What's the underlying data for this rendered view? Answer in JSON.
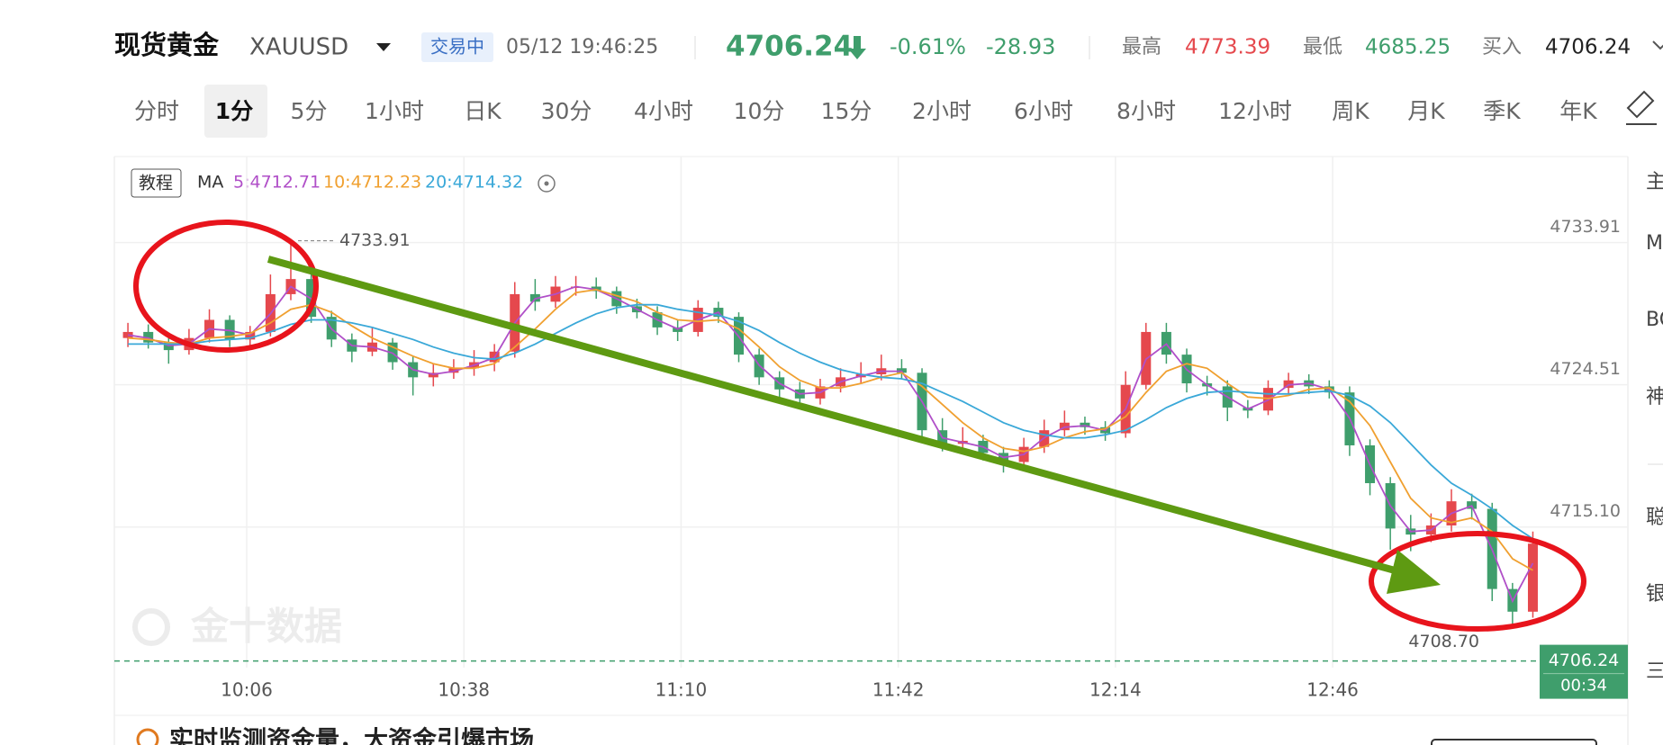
{
  "header": {
    "name": "现货黄金",
    "symbol": "XAUUSD",
    "status": "交易中",
    "datetime": "05/12 19:46:25",
    "price": "4706.24",
    "change_pct": "-0.61%",
    "change": "-28.93",
    "high_label": "最高",
    "high": "4773.39",
    "low_label": "最低",
    "low": "4685.25",
    "bid_label": "买入",
    "bid": "4706.24"
  },
  "tabs": [
    "分时",
    "1分",
    "5分",
    "1小时",
    "日K",
    "30分",
    "4小时",
    "10分",
    "15分",
    "2小时",
    "6小时",
    "8小时",
    "12小时",
    "周K",
    "月K",
    "季K",
    "年K"
  ],
  "tutorial": "教程",
  "watermark": "金十数据",
  "banner": "实时监测资金量，大资金引爆市场",
  "sidebar": [
    "主",
    "M",
    "BO",
    "神",
    "聪",
    "银",
    "三"
  ],
  "chart_data": {
    "type": "candlestick",
    "indicator": "MA",
    "up_color": "#e5484d",
    "down_color": "#3f9e6c",
    "x": [
      2,
      5,
      8,
      11,
      14,
      17,
      20,
      23,
      26,
      29,
      32,
      35,
      38,
      41,
      44,
      47,
      50,
      53,
      56,
      59,
      62,
      65,
      68,
      71,
      74,
      77,
      80,
      83,
      86,
      89,
      92,
      95,
      98,
      101,
      104,
      107,
      110,
      113,
      116,
      119,
      122,
      125,
      128,
      131,
      134,
      137,
      140,
      143,
      146,
      149,
      152,
      155,
      158,
      161,
      164,
      167,
      170,
      173,
      176,
      179,
      182,
      185,
      188,
      191,
      194,
      197,
      200,
      203,
      206,
      209
    ],
    "candles": [
      [
        4727.6,
        4728.6,
        4727.0,
        4728.0
      ],
      [
        4728.0,
        4728.5,
        4726.9,
        4727.3
      ],
      [
        4727.3,
        4727.8,
        4725.9,
        4726.8
      ],
      [
        4726.8,
        4728.2,
        4726.5,
        4727.6
      ],
      [
        4727.6,
        4729.5,
        4727.3,
        4728.8
      ],
      [
        4728.8,
        4729.1,
        4727.0,
        4727.5
      ],
      [
        4727.5,
        4728.4,
        4726.9,
        4728.0
      ],
      [
        4728.0,
        4731.8,
        4727.7,
        4730.5
      ],
      [
        4730.5,
        4733.91,
        4730.1,
        4731.5
      ],
      [
        4731.5,
        4731.9,
        4728.6,
        4729.0
      ],
      [
        4729.0,
        4729.4,
        4727.0,
        4727.5
      ],
      [
        4727.5,
        4727.9,
        4726.0,
        4726.7
      ],
      [
        4726.7,
        4728.3,
        4726.4,
        4727.3
      ],
      [
        4727.3,
        4727.6,
        4725.5,
        4726.0
      ],
      [
        4726.0,
        4726.4,
        4723.8,
        4725.0
      ],
      [
        4725.0,
        4725.9,
        4724.4,
        4725.3
      ],
      [
        4725.3,
        4726.2,
        4724.9,
        4725.6
      ],
      [
        4725.6,
        4726.8,
        4725.1,
        4726.0
      ],
      [
        4726.0,
        4727.2,
        4725.4,
        4726.7
      ],
      [
        4726.7,
        4731.3,
        4726.3,
        4730.5
      ],
      [
        4730.5,
        4731.5,
        4729.4,
        4730.0
      ],
      [
        4730.0,
        4731.7,
        4729.6,
        4731.0
      ],
      [
        4731.0,
        4731.7,
        4730.4,
        4731.0
      ],
      [
        4731.0,
        4731.6,
        4730.2,
        4730.7
      ],
      [
        4730.7,
        4731.0,
        4729.2,
        4729.7
      ],
      [
        4729.7,
        4730.2,
        4728.9,
        4729.3
      ],
      [
        4729.3,
        4729.7,
        4727.8,
        4728.3
      ],
      [
        4728.3,
        4728.8,
        4727.4,
        4728.0
      ],
      [
        4728.0,
        4730.1,
        4727.7,
        4729.6
      ],
      [
        4729.6,
        4730.0,
        4728.6,
        4729.0
      ],
      [
        4729.0,
        4729.3,
        4726.0,
        4726.5
      ],
      [
        4726.5,
        4726.9,
        4724.5,
        4725.0
      ],
      [
        4725.0,
        4725.4,
        4723.6,
        4724.2
      ],
      [
        4724.2,
        4724.7,
        4722.9,
        4723.6
      ],
      [
        4723.6,
        4724.9,
        4723.2,
        4724.4
      ],
      [
        4724.4,
        4725.6,
        4724.0,
        4725.0
      ],
      [
        4725.0,
        4726.0,
        4724.6,
        4725.2
      ],
      [
        4725.2,
        4726.5,
        4724.8,
        4725.6
      ],
      [
        4725.6,
        4726.2,
        4724.9,
        4725.3
      ],
      [
        4725.3,
        4725.6,
        4720.8,
        4721.5
      ],
      [
        4721.5,
        4722.3,
        4720.1,
        4720.6
      ],
      [
        4720.6,
        4721.7,
        4720.2,
        4720.8
      ],
      [
        4720.8,
        4721.2,
        4719.5,
        4720.0
      ],
      [
        4720.0,
        4720.4,
        4718.7,
        4719.4
      ],
      [
        4719.4,
        4721.0,
        4719.0,
        4720.4
      ],
      [
        4720.4,
        4722.2,
        4720.0,
        4721.5
      ],
      [
        4721.5,
        4722.8,
        4721.1,
        4722.0
      ],
      [
        4722.0,
        4722.4,
        4721.2,
        4721.7
      ],
      [
        4721.7,
        4722.1,
        4720.8,
        4721.3
      ],
      [
        4721.3,
        4725.4,
        4721.0,
        4724.5
      ],
      [
        4724.5,
        4728.6,
        4724.2,
        4728.0
      ],
      [
        4728.0,
        4728.6,
        4725.9,
        4726.5
      ],
      [
        4726.5,
        4726.9,
        4724.0,
        4724.6
      ],
      [
        4724.6,
        4725.1,
        4723.8,
        4724.4
      ],
      [
        4724.4,
        4724.8,
        4722.1,
        4723.0
      ],
      [
        4723.0,
        4723.5,
        4722.3,
        4722.8
      ],
      [
        4722.8,
        4724.8,
        4722.5,
        4724.3
      ],
      [
        4724.3,
        4725.3,
        4723.9,
        4724.8
      ],
      [
        4724.8,
        4725.2,
        4723.9,
        4724.4
      ],
      [
        4724.4,
        4724.8,
        4723.6,
        4724.0
      ],
      [
        4724.0,
        4724.4,
        4719.8,
        4720.5
      ],
      [
        4720.5,
        4720.9,
        4717.2,
        4718.0
      ],
      [
        4718.0,
        4718.4,
        4713.6,
        4715.0
      ],
      [
        4715.0,
        4715.9,
        4713.5,
        4714.6
      ],
      [
        4714.6,
        4716.0,
        4714.1,
        4715.2
      ],
      [
        4715.2,
        4717.6,
        4714.8,
        4716.8
      ],
      [
        4716.8,
        4717.3,
        4715.6,
        4716.3
      ],
      [
        4716.3,
        4716.7,
        4710.2,
        4711.0
      ],
      [
        4711.0,
        4711.4,
        4708.7,
        4709.5
      ],
      [
        4709.5,
        4714.8,
        4709.1,
        4714.0
      ]
    ],
    "series": [
      {
        "name": "5:4712.71",
        "color": "#b04fc8",
        "values": [
          4727.8,
          4727.6,
          4727.1,
          4727.2,
          4728.2,
          4728.1,
          4727.8,
          4729.2,
          4731.0,
          4730.2,
          4728.2,
          4727.1,
          4727.0,
          4726.6,
          4725.5,
          4725.2,
          4725.4,
          4725.8,
          4726.3,
          4728.6,
          4730.2,
          4730.5,
          4731.0,
          4730.8,
          4730.2,
          4729.5,
          4728.8,
          4728.2,
          4728.8,
          4729.3,
          4727.7,
          4725.8,
          4724.6,
          4723.9,
          4724.0,
          4724.7,
          4725.1,
          4725.4,
          4725.4,
          4723.4,
          4721.0,
          4720.7,
          4720.4,
          4719.7,
          4719.9,
          4721.0,
          4721.7,
          4721.8,
          4721.5,
          4722.9,
          4726.2,
          4727.2,
          4725.5,
          4724.5,
          4723.7,
          4722.9,
          4723.5,
          4724.5,
          4724.6,
          4724.2,
          4722.3,
          4719.2,
          4716.5,
          4714.8,
          4714.9,
          4716.0,
          4716.5,
          4713.6,
          4710.2,
          4712.71
        ]
      },
      {
        "name": "10:4712.23",
        "color": "#f0a030",
        "values": [
          4727.6,
          4727.5,
          4727.3,
          4727.2,
          4727.6,
          4727.7,
          4727.9,
          4728.6,
          4729.5,
          4729.8,
          4729.3,
          4728.4,
          4727.6,
          4727.0,
          4726.4,
          4725.9,
          4725.6,
          4725.6,
          4725.9,
          4727.0,
          4728.2,
          4729.5,
          4730.6,
          4730.8,
          4730.4,
          4730.0,
          4729.3,
          4728.8,
          4728.7,
          4728.8,
          4728.2,
          4727.0,
          4725.7,
          4724.8,
          4724.3,
          4724.3,
          4724.6,
          4725.0,
          4725.3,
          4724.4,
          4723.2,
          4722.0,
          4721.0,
          4720.3,
          4720.1,
          4720.4,
          4721.0,
          4721.4,
          4721.6,
          4722.4,
          4724.0,
          4725.4,
          4725.9,
          4725.6,
          4724.6,
          4723.7,
          4723.6,
          4723.8,
          4724.2,
          4724.3,
          4723.4,
          4721.8,
          4719.4,
          4717.0,
          4715.7,
          4715.4,
          4715.7,
          4714.8,
          4713.0,
          4712.23
        ]
      },
      {
        "name": "20:4714.32",
        "color": "#3aa8d8",
        "values": [
          4727.2,
          4727.2,
          4727.2,
          4727.2,
          4727.4,
          4727.5,
          4727.6,
          4728.0,
          4728.5,
          4728.8,
          4728.8,
          4728.6,
          4728.3,
          4727.9,
          4727.5,
          4727.0,
          4726.6,
          4726.3,
          4726.2,
          4726.6,
          4727.2,
          4727.9,
          4728.6,
          4729.2,
          4729.6,
          4729.8,
          4729.8,
          4729.5,
          4729.3,
          4729.1,
          4728.7,
          4728.1,
          4727.3,
          4726.6,
          4726.0,
          4725.5,
          4725.2,
          4725.0,
          4724.9,
          4724.6,
          4724.0,
          4723.4,
          4722.7,
          4722.0,
          4721.5,
          4721.2,
          4721.0,
          4721.0,
          4721.2,
          4721.5,
          4722.2,
          4723.0,
          4723.6,
          4724.0,
          4724.1,
          4724.0,
          4723.9,
          4723.9,
          4724.0,
          4724.1,
          4723.8,
          4723.1,
          4722.0,
          4720.6,
          4719.2,
          4718.0,
          4717.2,
          4716.3,
          4715.2,
          4714.32
        ]
      }
    ],
    "xlim": [
      0,
      223
    ],
    "xticks": [
      {
        "value": 19.5,
        "label": "10:06"
      },
      {
        "value": 51.5,
        "label": "10:38"
      },
      {
        "value": 83.5,
        "label": "11:10"
      },
      {
        "value": 115.5,
        "label": "11:42"
      },
      {
        "value": 147.5,
        "label": "12:14"
      },
      {
        "value": 179.5,
        "label": "12:46"
      }
    ],
    "ylim": [
      4705.8,
      4739.6
    ],
    "yticks": [
      4733.91,
      4724.51,
      {
        "value": 4715.1,
        "label": "4715.10"
      }
    ],
    "grid": true,
    "last_price": 4706.24,
    "countdown": "00:34",
    "low_marker": {
      "value": 4708.7,
      "label": "4708.70"
    }
  }
}
